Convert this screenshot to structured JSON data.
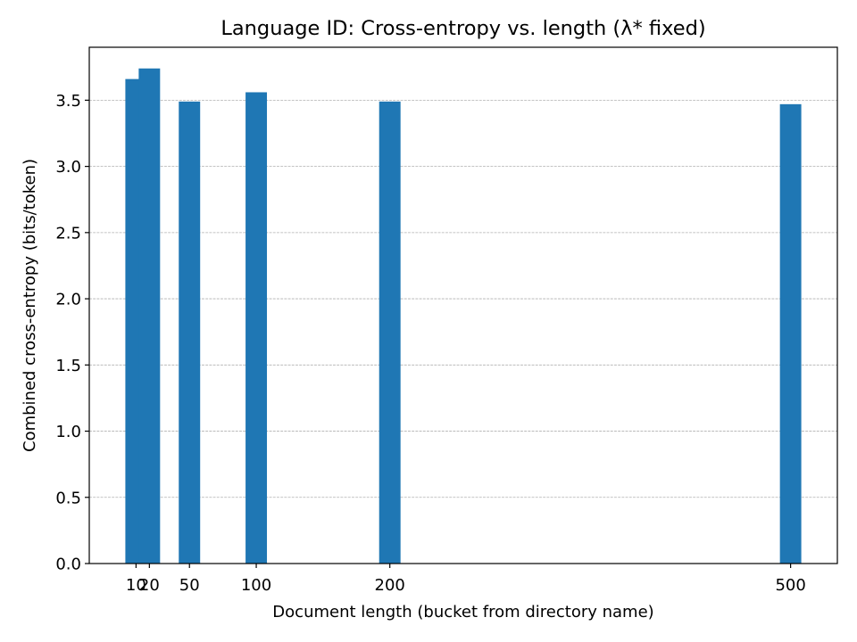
{
  "chart_data": {
    "type": "bar",
    "title": "Language ID: Cross-entropy vs. length (λ* fixed)",
    "xlabel": "Document length (bucket from directory name)",
    "ylabel": "Combined cross-entropy (bits/token)",
    "x": [
      10,
      20,
      50,
      100,
      200,
      500
    ],
    "x_tick_labels": [
      "10",
      "20",
      "50",
      "100",
      "200",
      "500"
    ],
    "values": [
      3.66,
      3.74,
      3.49,
      3.56,
      3.49,
      3.47
    ],
    "bar_width": 16,
    "xlim": [
      -25,
      535
    ],
    "ylim": [
      0,
      3.9
    ],
    "y_ticks": [
      0.0,
      0.5,
      1.0,
      1.5,
      2.0,
      2.5,
      3.0,
      3.5
    ],
    "y_tick_labels": [
      "0.0",
      "0.5",
      "1.0",
      "1.5",
      "2.0",
      "2.5",
      "3.0",
      "3.5"
    ],
    "grid": "y-dashed",
    "bar_color": "#1f77b4"
  }
}
